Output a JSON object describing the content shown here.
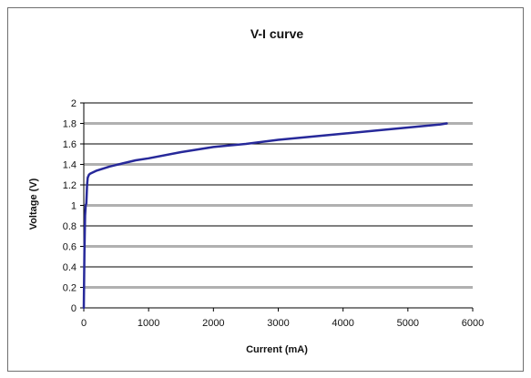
{
  "chart_data": {
    "type": "line",
    "title": "V-I curve",
    "xlabel": "Current (mA)",
    "ylabel": "Voltage (V)",
    "xlim": [
      0,
      6000
    ],
    "ylim": [
      0,
      2
    ],
    "xticks": [
      0,
      1000,
      2000,
      3000,
      4000,
      5000,
      6000
    ],
    "yticks": [
      0,
      0.2,
      0.4,
      0.6,
      0.8,
      1,
      1.2,
      1.4,
      1.6,
      1.8,
      2
    ],
    "grid": "horizontal",
    "legend": "none",
    "colors": {
      "series": "#27299a",
      "grid_dark": "#000000",
      "grid_light": "#b0b0b0"
    },
    "series": [
      {
        "x": [
          0,
          10,
          20,
          30,
          40,
          50,
          60,
          80,
          100,
          200,
          400,
          600,
          800,
          1000,
          1500,
          2000,
          2500,
          3000,
          3500,
          4000,
          4500,
          5000,
          5500,
          5600
        ],
        "y": [
          0,
          0.55,
          0.9,
          1.0,
          1.02,
          1.2,
          1.27,
          1.3,
          1.31,
          1.34,
          1.38,
          1.41,
          1.44,
          1.46,
          1.52,
          1.57,
          1.6,
          1.64,
          1.67,
          1.7,
          1.73,
          1.76,
          1.79,
          1.8
        ]
      }
    ]
  }
}
